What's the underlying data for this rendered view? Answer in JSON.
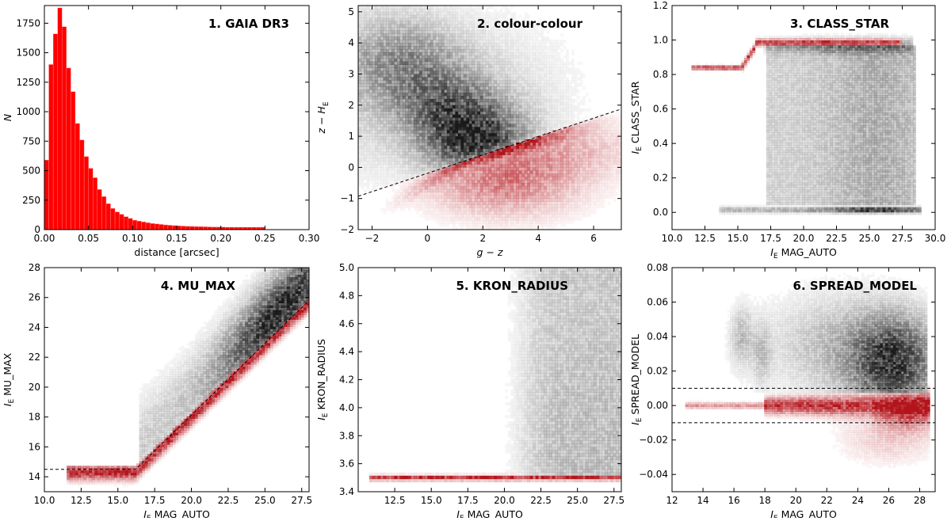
{
  "figure": {
    "description_label": "Six-panel diagnostic figure"
  },
  "chart_data": [
    {
      "id": "p1",
      "type": "bar",
      "title": "1. GAIA DR3",
      "xlabel": "distance [arcsec]",
      "ylabel": "N",
      "xlim": [
        0,
        0.3
      ],
      "ylim": [
        0,
        1900
      ],
      "xticks": [
        0.0,
        0.05,
        0.1,
        0.15,
        0.2,
        0.25,
        0.3
      ],
      "xticklabels": [
        "0.00",
        "0.05",
        "0.10",
        "0.15",
        "0.20",
        "0.25",
        "0.30"
      ],
      "yticks": [
        0,
        250,
        500,
        750,
        1000,
        1250,
        1500,
        1750
      ],
      "yticklabels": [
        "0",
        "250",
        "500",
        "750",
        "1000",
        "1250",
        "1500",
        "1750"
      ],
      "bin_start": 0.0,
      "bin_width": 0.005,
      "values": [
        590,
        1400,
        1660,
        1880,
        1720,
        1370,
        1170,
        900,
        760,
        620,
        520,
        440,
        340,
        280,
        220,
        180,
        150,
        130,
        110,
        95,
        80,
        72,
        65,
        58,
        52,
        48,
        44,
        40,
        37,
        34,
        32,
        30,
        28,
        27,
        26,
        25,
        24,
        23,
        22,
        22,
        21,
        20,
        20,
        20,
        20,
        20,
        20,
        20,
        20,
        20
      ],
      "color": "#ff0000"
    },
    {
      "id": "p2",
      "type": "heatmap",
      "title": "2. colour-colour",
      "xlabel_main": "g − z",
      "ylabel_main": "z − H",
      "ylabel_sub": "E",
      "xlim": [
        -2.5,
        7
      ],
      "ylim": [
        -2,
        5.2
      ],
      "xticks": [
        -2,
        0,
        2,
        4,
        6
      ],
      "xticklabels": [
        "−2",
        "0",
        "2",
        "4",
        "6"
      ],
      "yticks": [
        -2,
        -1,
        0,
        1,
        2,
        3,
        4,
        5
      ],
      "yticklabels": [
        "−2",
        "−1",
        "0",
        "1",
        "2",
        "3",
        "4",
        "5"
      ],
      "galaxies_color": "#333333",
      "stars_color": "#c0392b",
      "separation_line": {
        "slope": 0.295,
        "intercept": -0.19
      }
    },
    {
      "id": "p3",
      "type": "heatmap",
      "title": "3. CLASS_STAR",
      "xlabel_main": "I",
      "xlabel_sub": "E",
      "xlabel_rest": "MAG_AUTO",
      "ylabel_main": "I",
      "ylabel_sub": "E",
      "ylabel_rest": "CLASS_STAR",
      "xlim": [
        10,
        30
      ],
      "ylim": [
        -0.1,
        1.2
      ],
      "xticks": [
        10,
        12.5,
        15,
        17.5,
        20,
        22.5,
        25,
        27.5,
        30
      ],
      "xticklabels": [
        "10.0",
        "12.5",
        "15.0",
        "17.5",
        "20.0",
        "22.5",
        "25.0",
        "27.5",
        "30.0"
      ],
      "yticks": [
        0,
        0.2,
        0.4,
        0.6,
        0.8,
        1.0,
        1.2
      ],
      "yticklabels": [
        "0.0",
        "0.2",
        "0.4",
        "0.6",
        "0.8",
        "1.0",
        "1.2"
      ]
    },
    {
      "id": "p4",
      "type": "heatmap",
      "title": "4. MU_MAX",
      "xlabel_main": "I",
      "xlabel_sub": "E",
      "xlabel_rest": "MAG_AUTO",
      "ylabel_main": "I",
      "ylabel_sub": "E",
      "ylabel_rest": "MU_MAX",
      "xlim": [
        10,
        28
      ],
      "ylim": [
        13,
        28
      ],
      "xticks": [
        10,
        12.5,
        15,
        17.5,
        20,
        22.5,
        25,
        27.5
      ],
      "xticklabels": [
        "10.0",
        "12.5",
        "15.0",
        "17.5",
        "20.0",
        "22.5",
        "25.0",
        "27.5"
      ],
      "yticks": [
        14,
        16,
        18,
        20,
        22,
        24,
        26,
        28
      ],
      "yticklabels": [
        "14",
        "16",
        "18",
        "20",
        "22",
        "24",
        "26",
        "28"
      ],
      "separation_line": {
        "x": [
          10,
          16.2,
          28
        ],
        "y": [
          14.5,
          14.5,
          25.8
        ]
      }
    },
    {
      "id": "p5",
      "type": "heatmap",
      "title": "5. KRON_RADIUS",
      "xlabel_main": "I",
      "xlabel_sub": "E",
      "xlabel_rest": "MAG_AUTO",
      "ylabel_main": "I",
      "ylabel_sub": "E",
      "ylabel_rest": "KRON_RADIUS",
      "xlim": [
        10,
        28
      ],
      "ylim": [
        3.4,
        5.0
      ],
      "xticks": [
        12.5,
        15,
        17.5,
        20,
        22.5,
        25,
        27.5
      ],
      "xticklabels": [
        "12.5",
        "15.0",
        "17.5",
        "20.0",
        "22.5",
        "25.0",
        "27.5"
      ],
      "yticks": [
        3.4,
        3.6,
        3.8,
        4.0,
        4.2,
        4.4,
        4.6,
        4.8,
        5.0
      ],
      "yticklabels": [
        "3.4",
        "3.6",
        "3.8",
        "4.0",
        "4.2",
        "4.4",
        "4.6",
        "4.8",
        "5.0"
      ]
    },
    {
      "id": "p6",
      "type": "heatmap",
      "title": "6. SPREAD_MODEL",
      "xlabel_main": "I",
      "xlabel_sub": "E",
      "xlabel_rest": "MAG_AUTO",
      "ylabel_main": "I",
      "ylabel_sub": "E",
      "ylabel_rest": "SPREAD_MODEL",
      "xlim": [
        12,
        29
      ],
      "ylim": [
        -0.05,
        0.08
      ],
      "xticks": [
        12,
        14,
        16,
        18,
        20,
        22,
        24,
        26,
        28
      ],
      "xticklabels": [
        "12",
        "14",
        "16",
        "18",
        "20",
        "22",
        "24",
        "26",
        "28"
      ],
      "yticks": [
        -0.04,
        -0.02,
        0.0,
        0.02,
        0.04,
        0.06,
        0.08
      ],
      "yticklabels": [
        "−0.04",
        "−0.02",
        "0.00",
        "0.02",
        "0.04",
        "0.06",
        "0.08"
      ],
      "separation_lines": [
        0.01,
        -0.01
      ]
    }
  ]
}
